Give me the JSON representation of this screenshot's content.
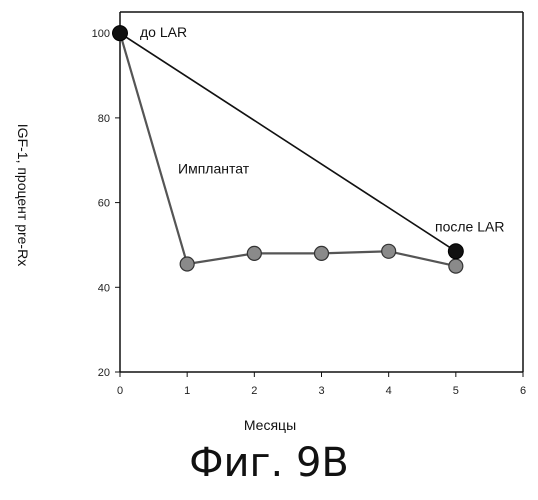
{
  "chart_data": {
    "type": "line",
    "xlabel": "Месяцы",
    "ylabel": "IGF-1, процент pre-Rx",
    "xlim": [
      0,
      6
    ],
    "ylim": [
      20,
      105
    ],
    "x_ticks": [
      0,
      1,
      2,
      3,
      4,
      5,
      6
    ],
    "y_ticks": [
      20,
      40,
      60,
      80,
      100
    ],
    "grid": false,
    "series": [
      {
        "name": "Имплантат",
        "x": [
          0,
          1,
          2,
          3,
          4,
          5
        ],
        "y": [
          100,
          45.5,
          48,
          48,
          48.5,
          45
        ],
        "marker": "grey-circle",
        "color": "#555555"
      },
      {
        "name": "",
        "x": [
          0,
          5
        ],
        "y": [
          100,
          48.5
        ],
        "marker": "black-circle",
        "color": "#111111"
      }
    ],
    "annotations": [
      {
        "text": "до LAR",
        "x": 0,
        "y": 100
      },
      {
        "text": "Имплантат",
        "x": 1,
        "y": 68
      },
      {
        "text": "после LAR",
        "x": 5,
        "y": 48.5
      }
    ]
  },
  "caption": "Фиг. 9B"
}
